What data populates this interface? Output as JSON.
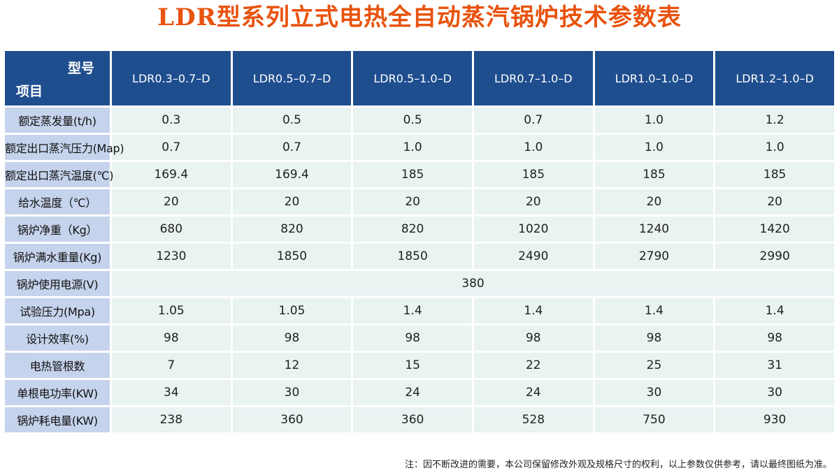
{
  "title": "LDR型系列立式电热全自动蒸汽锅炉技术参数表",
  "header": {
    "corner_model": "型号",
    "corner_item": "项目",
    "models": [
      "LDR0.3–0.7–D",
      "LDR0.5–0.7–D",
      "LDR0.5–1.0–D",
      "LDR0.7–1.0–D",
      "LDR1.0–1.0–D",
      "LDR1.2–1.0–D"
    ]
  },
  "rows": [
    {
      "label": "额定蒸发量(t/h)",
      "values": [
        "0.3",
        "0.5",
        "0.5",
        "0.7",
        "1.0",
        "1.2"
      ]
    },
    {
      "label": "额定出口蒸汽压力(Map)",
      "values": [
        "0.7",
        "0.7",
        "1.0",
        "1.0",
        "1.0",
        "1.0"
      ]
    },
    {
      "label": "额定出口蒸汽温度(℃)",
      "values": [
        "169.4",
        "169.4",
        "185",
        "185",
        "185",
        "185"
      ]
    },
    {
      "label": "给水温度（℃）",
      "values": [
        "20",
        "20",
        "20",
        "20",
        "20",
        "20"
      ]
    },
    {
      "label": "锅炉净重（Kg）",
      "values": [
        "680",
        "820",
        "820",
        "1020",
        "1240",
        "1420"
      ]
    },
    {
      "label": "锅炉满水重量(Kg)",
      "values": [
        "1230",
        "1850",
        "1850",
        "2490",
        "2790",
        "2990"
      ]
    },
    {
      "label": "锅炉使用电源(V)",
      "merged_value": "380"
    },
    {
      "label": "试验压力(Mpa)",
      "values": [
        "1.05",
        "1.05",
        "1.4",
        "1.4",
        "1.4",
        "1.4"
      ]
    },
    {
      "label": "设计效率(%)",
      "values": [
        "98",
        "98",
        "98",
        "98",
        "98",
        "98"
      ]
    },
    {
      "label": "电热管根数",
      "values": [
        "7",
        "12",
        "15",
        "22",
        "25",
        "31"
      ]
    },
    {
      "label": "单根电功率(KW)",
      "values": [
        "34",
        "30",
        "24",
        "24",
        "30",
        "30"
      ]
    },
    {
      "label": "锅炉耗电量(KW)",
      "values": [
        "238",
        "360",
        "360",
        "528",
        "750",
        "930"
      ]
    }
  ],
  "note": "注：因不断改进的需要，本公司保留修改外观及规格尺寸的权利，以上参数仅供参考，请以最终图纸为准。",
  "colors": {
    "title": "#e8530e",
    "header_bg": "#1f4e8f",
    "label_bg": "#c6d3ec",
    "cell_bg": "#e8f3f2"
  }
}
